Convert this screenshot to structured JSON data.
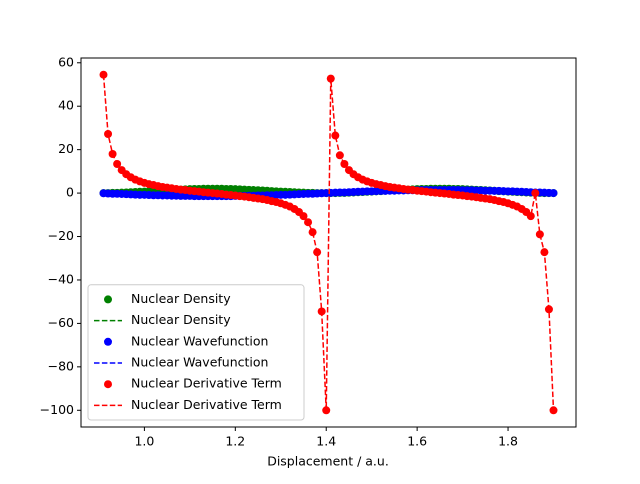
{
  "chart_data": {
    "type": "line",
    "xlabel": "Displacement / a.u.",
    "x": [
      0.91,
      0.92,
      0.93,
      0.94,
      0.95,
      0.96,
      0.97,
      0.98,
      0.99,
      1.0,
      1.01,
      1.02,
      1.03,
      1.04,
      1.05,
      1.06,
      1.07,
      1.08,
      1.09,
      1.1,
      1.11,
      1.12,
      1.13,
      1.14,
      1.15,
      1.16,
      1.17,
      1.18,
      1.19,
      1.2,
      1.21,
      1.22,
      1.23,
      1.24,
      1.25,
      1.26,
      1.27,
      1.28,
      1.29,
      1.3,
      1.31,
      1.32,
      1.33,
      1.34,
      1.35,
      1.36,
      1.37,
      1.38,
      1.39,
      1.4,
      1.41,
      1.42,
      1.43,
      1.44,
      1.45,
      1.46,
      1.47,
      1.48,
      1.49,
      1.5,
      1.51,
      1.52,
      1.53,
      1.54,
      1.55,
      1.56,
      1.57,
      1.58,
      1.59,
      1.6,
      1.61,
      1.62,
      1.63,
      1.64,
      1.65,
      1.66,
      1.67,
      1.68,
      1.69,
      1.7,
      1.71,
      1.72,
      1.73,
      1.74,
      1.75,
      1.76,
      1.77,
      1.78,
      1.79,
      1.8,
      1.81,
      1.82,
      1.83,
      1.84,
      1.85,
      1.86,
      1.87,
      1.88,
      1.89,
      1.9
    ],
    "series": [
      {
        "name": "Nuclear Density",
        "color": "#008000",
        "values": [
          0.0,
          0.0,
          0.1,
          0.1,
          0.2,
          0.3,
          0.4,
          0.5,
          0.6,
          0.7,
          0.8,
          0.9,
          1.1,
          1.2,
          1.3,
          1.4,
          1.5,
          1.6,
          1.7,
          1.8,
          1.9,
          1.9,
          2.0,
          2.0,
          2.0,
          2.0,
          2.0,
          1.9,
          1.9,
          1.8,
          1.7,
          1.6,
          1.5,
          1.4,
          1.3,
          1.2,
          1.1,
          0.9,
          0.8,
          0.7,
          0.6,
          0.5,
          0.4,
          0.3,
          0.2,
          0.1,
          0.1,
          0.0,
          0.0,
          0,
          0.0,
          0.0,
          0.1,
          0.1,
          0.2,
          0.3,
          0.4,
          0.5,
          0.6,
          0.7,
          0.8,
          0.9,
          1.1,
          1.2,
          1.3,
          1.4,
          1.5,
          1.6,
          1.7,
          1.8,
          1.9,
          1.9,
          2.0,
          2.0,
          2.0,
          2.0,
          2.0,
          1.9,
          1.9,
          1.8,
          1.7,
          1.6,
          1.5,
          1.4,
          1.3,
          1.2,
          1.1,
          0.9,
          0.8,
          0.7,
          0.6,
          0.5,
          0.4,
          0.3,
          0.2,
          0.1,
          0.1,
          0.0,
          0.0,
          0
        ]
      },
      {
        "name": "Nuclear Wavefunction",
        "color": "#0000ff",
        "values": [
          -0.1,
          -0.2,
          -0.3,
          -0.3,
          -0.4,
          -0.5,
          -0.6,
          -0.7,
          -0.8,
          -0.8,
          -0.9,
          -1.0,
          -1.0,
          -1.1,
          -1.1,
          -1.2,
          -1.2,
          -1.3,
          -1.3,
          -1.3,
          -1.4,
          -1.4,
          -1.4,
          -1.4,
          -1.4,
          -1.4,
          -1.4,
          -1.4,
          -1.4,
          -1.3,
          -1.3,
          -1.3,
          -1.2,
          -1.2,
          -1.1,
          -1.1,
          -1.0,
          -1.0,
          -0.9,
          -0.8,
          -0.8,
          -0.7,
          -0.6,
          -0.5,
          -0.4,
          -0.3,
          -0.3,
          -0.2,
          -0.1,
          0,
          0.1,
          0.2,
          0.3,
          0.3,
          0.4,
          0.5,
          0.6,
          0.7,
          0.8,
          0.8,
          0.9,
          1.0,
          1.0,
          1.1,
          1.1,
          1.2,
          1.2,
          1.3,
          1.3,
          1.3,
          1.4,
          1.4,
          1.4,
          1.4,
          1.4,
          1.4,
          1.4,
          1.4,
          1.4,
          1.3,
          1.3,
          1.3,
          1.2,
          1.2,
          1.1,
          1.1,
          1.0,
          1.0,
          0.9,
          0.8,
          0.8,
          0.7,
          0.6,
          0.5,
          0.4,
          0.3,
          0.3,
          0.2,
          0.1,
          0
        ]
      },
      {
        "name": "Nuclear Derivative Term",
        "color": "#ff0000",
        "values": [
          54.5,
          27.2,
          18.0,
          13.4,
          10.6,
          8.7,
          7.3,
          6.2,
          5.4,
          4.7,
          4.1,
          3.7,
          3.2,
          2.8,
          2.5,
          2.2,
          1.9,
          1.6,
          1.4,
          1.1,
          0.9,
          0.7,
          0.4,
          0.2,
          0,
          -0.2,
          -0.4,
          -0.7,
          -0.9,
          -1.1,
          -1.4,
          -1.6,
          -1.9,
          -2.2,
          -2.5,
          -2.8,
          -3.2,
          -3.7,
          -4.1,
          -4.7,
          -5.4,
          -6.2,
          -7.3,
          -8.7,
          -10.6,
          -13.4,
          -18.0,
          -27.2,
          -54.5,
          -100,
          52.7,
          26.5,
          17.4,
          13.4,
          10.6,
          8.7,
          7.3,
          6.2,
          5.4,
          4.7,
          4.1,
          3.7,
          3.2,
          2.8,
          2.5,
          2.2,
          1.9,
          1.6,
          1.4,
          1.1,
          0.9,
          0.7,
          0.4,
          0.2,
          0,
          -0.2,
          -0.4,
          -0.7,
          -0.9,
          -1.1,
          -1.4,
          -1.6,
          -1.9,
          -2.2,
          -2.5,
          -2.8,
          -3.2,
          -3.7,
          -4.1,
          -4.7,
          -5.4,
          -6.2,
          -7.3,
          -8.7,
          -10.6,
          0,
          -19.0,
          -27.2,
          -53.5,
          -100
        ]
      }
    ],
    "xlim": [
      0.8605,
      1.9495
    ],
    "ylim": [
      -107.7,
      62.2
    ],
    "xticks": [
      {
        "value": 1,
        "label": "1.0"
      },
      1.2,
      1.4,
      1.6,
      1.8
    ],
    "yticks": [
      {
        "value": -100,
        "label": "−100"
      },
      {
        "value": -80,
        "label": "−80"
      },
      {
        "value": -60,
        "label": "−60"
      },
      {
        "value": -40,
        "label": "−40"
      },
      {
        "value": -20,
        "label": "−20"
      },
      0,
      20,
      40,
      60
    ],
    "legend": "lower left"
  }
}
